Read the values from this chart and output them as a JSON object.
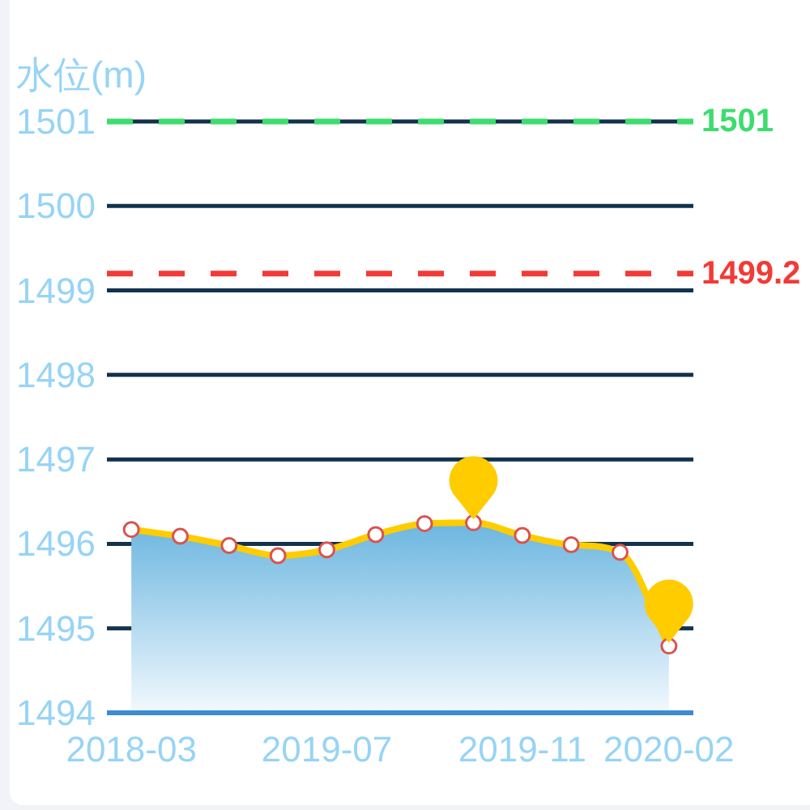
{
  "chart_data": {
    "type": "area",
    "ylabel": "水位(m)",
    "categories": [
      "2018-03",
      null,
      null,
      null,
      "2019-07",
      null,
      null,
      null,
      "2019-11",
      null,
      null,
      "2020-02"
    ],
    "series": [
      {
        "color": "#ffcc00",
        "values": [
          1496.17,
          1496.09,
          1495.98,
          1495.86,
          1495.93,
          1496.11,
          1496.24,
          1496.25,
          1496.1,
          1495.99,
          1495.9,
          1494.79
        ]
      }
    ],
    "ylim": [
      1494,
      1501
    ],
    "yticks": [
      1494,
      1495,
      1496,
      1497,
      1498,
      1499,
      1500,
      1501
    ],
    "grid": "y",
    "marker": "circle",
    "ref_lines": [
      {
        "axis": "y",
        "value": 1501,
        "label": "1501",
        "color": "#3ddc6e",
        "line_style": "dashed"
      },
      {
        "axis": "y",
        "value": 1499.2,
        "label": "1499.2",
        "color": "#f23a36",
        "line_style": "dashed"
      }
    ]
  }
}
